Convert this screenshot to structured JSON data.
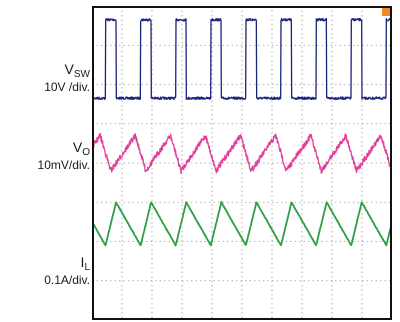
{
  "chart_data": {
    "type": "line",
    "title": "",
    "grid": true,
    "divisions": {
      "x": 10,
      "y": 8
    },
    "channels": [
      {
        "name": "V",
        "sub": "SW",
        "scale": "10V /div.",
        "color": "#1a237e",
        "waveform": "square",
        "period_div": 1.17,
        "phase_div": 0.45,
        "duty": 0.3,
        "high_div": 0.35,
        "low_div": 2.35,
        "noise_div": 0.03
      },
      {
        "name": "V",
        "sub": "O",
        "scale": "10mV/div.",
        "color": "#e0409a",
        "waveform": "ripple",
        "period_div": 1.17,
        "phase_div": 0.45,
        "duty": 0.3,
        "center_div": 3.75,
        "pp_div": 0.9,
        "noise_div": 0.07
      },
      {
        "name": "I",
        "sub": "L",
        "scale": "0.1A/div.",
        "color": "#2e9e44",
        "waveform": "triangle",
        "period_div": 1.17,
        "phase_div": 0.45,
        "duty": 0.3,
        "max_div": 5.0,
        "min_div": 6.1,
        "noise_div": 0.01
      }
    ]
  }
}
